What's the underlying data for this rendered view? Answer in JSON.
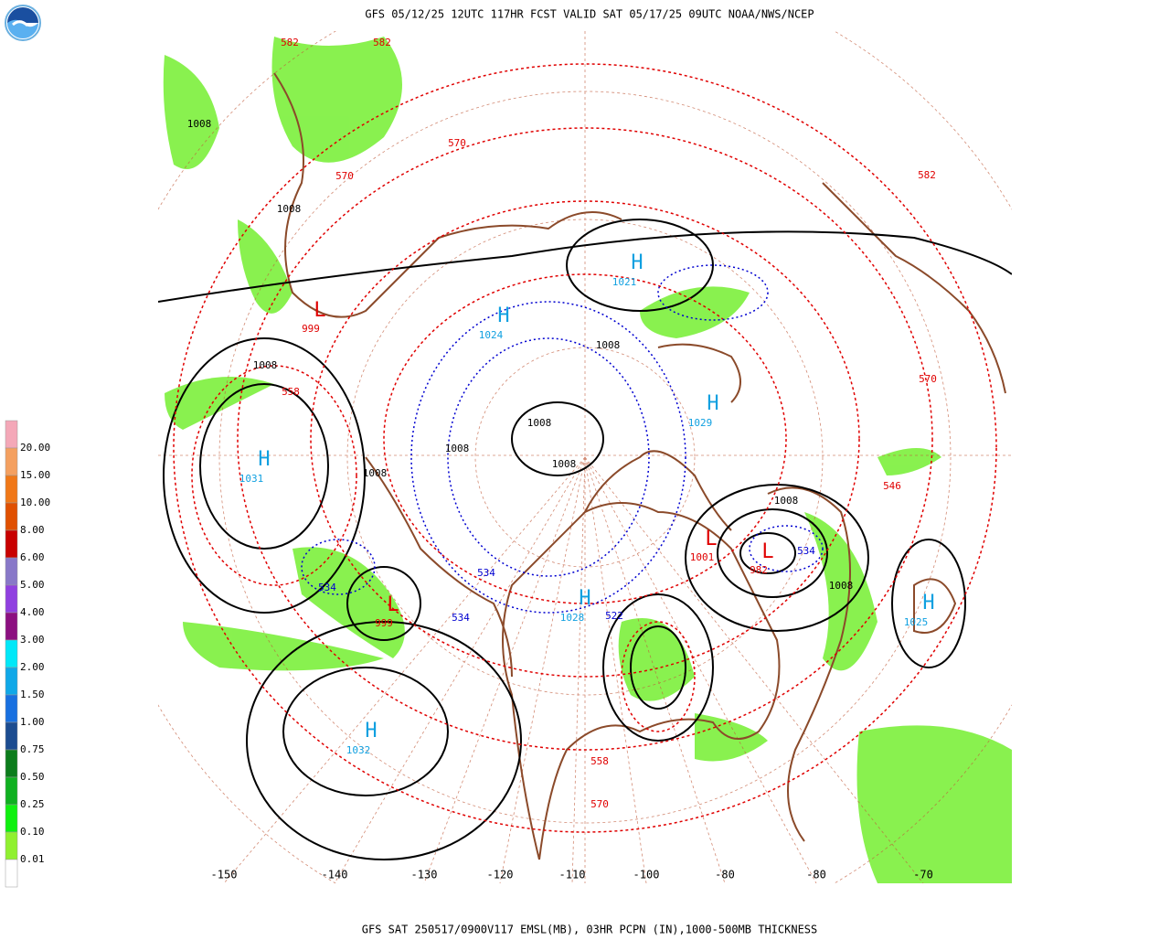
{
  "header": {
    "title": "GFS 05/12/25 12UTC 117HR FCST VALID SAT 05/17/25 09UTC NOAA/NWS/NCEP"
  },
  "footer": {
    "caption": "GFS SAT 250517/0900V117 EMSL(MB), 03HR PCPN (IN),1000-500MB THICKNESS"
  },
  "legend": {
    "labels": [
      "20.00",
      "15.00",
      "10.00",
      "8.00",
      "6.00",
      "5.00",
      "4.00",
      "3.00",
      "2.00",
      "1.50",
      "1.00",
      "0.75",
      "0.50",
      "0.25",
      "0.10",
      "0.01"
    ],
    "colors": [
      "#f4a8b8",
      "#f4a060",
      "#f07818",
      "#e05000",
      "#c80000",
      "#8878c8",
      "#9040e0",
      "#8c1080",
      "#00e8f8",
      "#10a8e8",
      "#1870e0",
      "#1c4c90",
      "#0c7c1c",
      "#10b020",
      "#10f010",
      "#90f030",
      "#ffffff"
    ]
  },
  "longitudes": [
    "-150",
    "-140",
    "-130",
    "-120",
    "-110",
    "-100",
    "-80",
    "-80",
    "-70"
  ],
  "highs": [
    {
      "symbol": "H",
      "pressure": "1031"
    },
    {
      "symbol": "H",
      "pressure": "1032"
    },
    {
      "symbol": "H",
      "pressure": "1025"
    },
    {
      "symbol": "H",
      "pressure": "1021"
    },
    {
      "symbol": "H",
      "pressure": "1024"
    },
    {
      "symbol": "H",
      "pressure": "1029"
    },
    {
      "symbol": "H",
      "pressure": "1028"
    }
  ],
  "lows": [
    {
      "symbol": "L",
      "pressure": "999"
    },
    {
      "symbol": "L",
      "pressure": "982"
    },
    {
      "symbol": "L",
      "pressure": "1001"
    },
    {
      "symbol": "L",
      "pressure": "999"
    }
  ],
  "isobar_labels": [
    "1008",
    "1008",
    "1008",
    "1008",
    "1008",
    "1008",
    "1008",
    "1008",
    "1008",
    "1008"
  ],
  "thickness_labels": [
    "582",
    "570",
    "558",
    "546",
    "570",
    "582",
    "558",
    "570",
    "582",
    "570"
  ],
  "cold_thickness_labels": [
    "534",
    "534",
    "534",
    "534",
    "522"
  ]
}
